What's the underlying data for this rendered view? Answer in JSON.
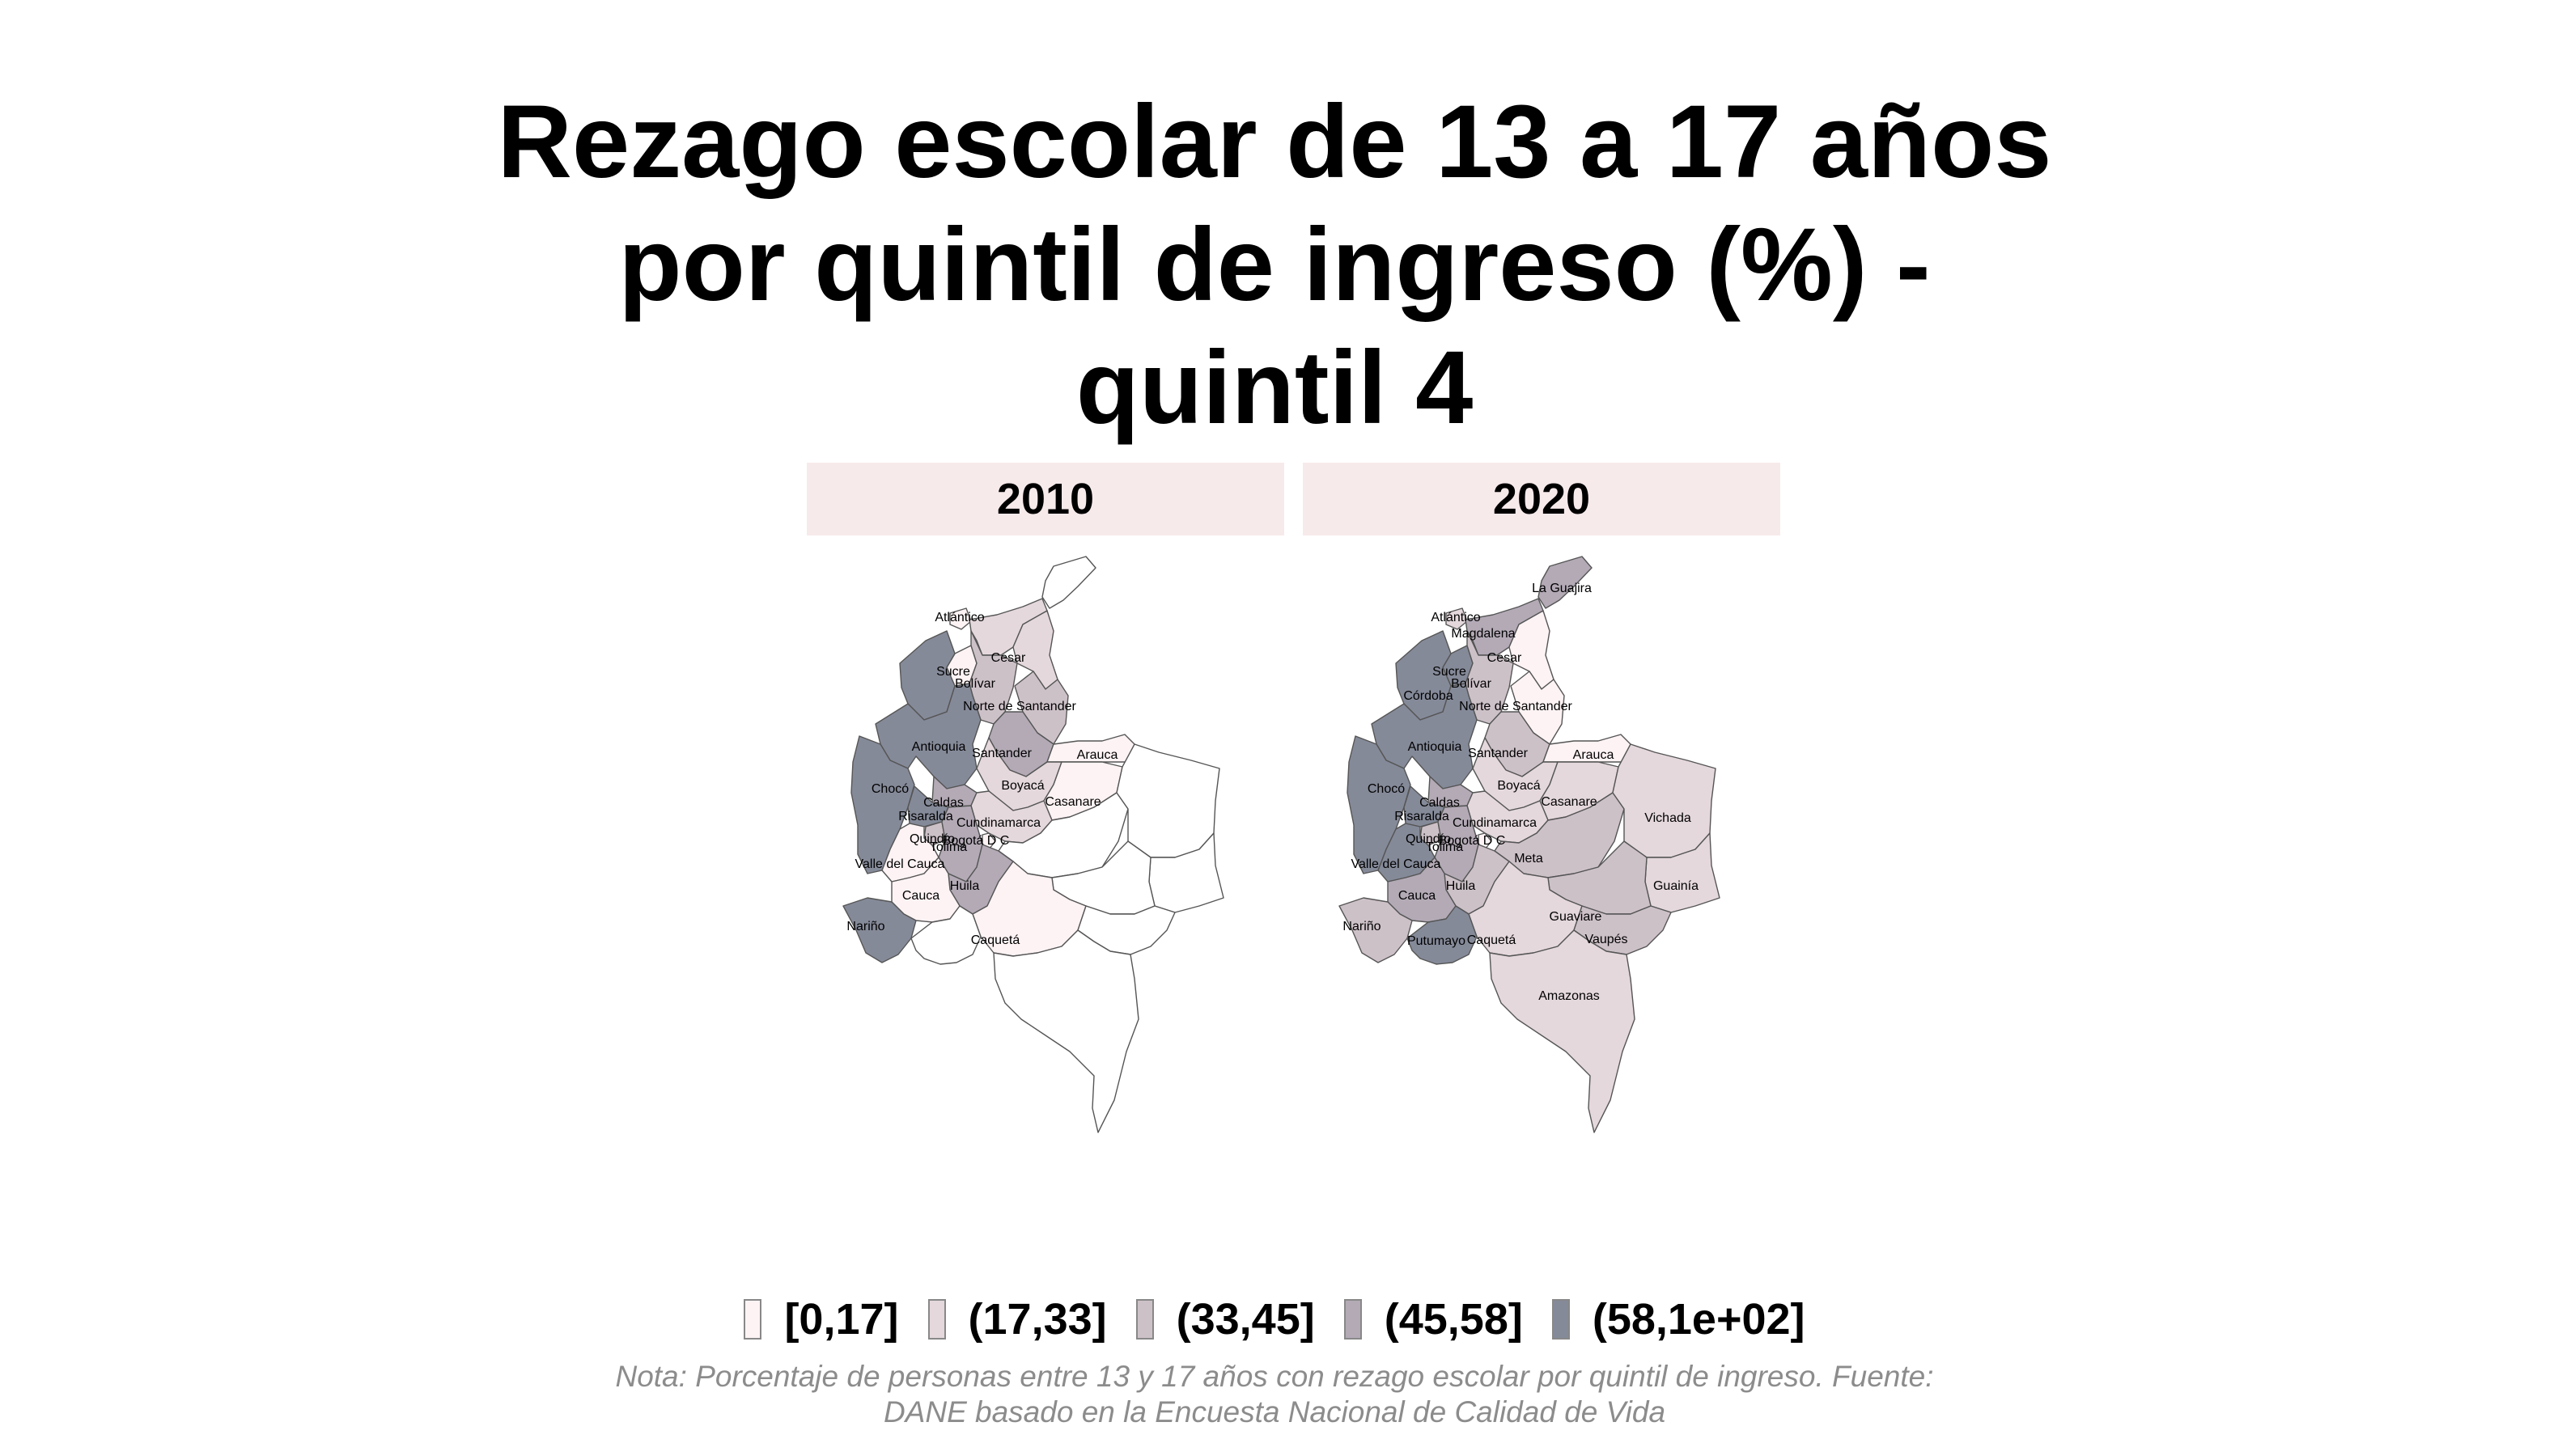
{
  "title": {
    "line1": "Rezago escolar de 13 a 17 años",
    "line2": "por quintil de ingreso (%) -",
    "line3": "quintil 4"
  },
  "panels": [
    {
      "year": "2010"
    },
    {
      "year": "2020"
    }
  ],
  "legend": {
    "bins": [
      {
        "label": "[0,17]",
        "color": "#fdf3f4"
      },
      {
        "label": "(17,33]",
        "color": "#e4d8dc"
      },
      {
        "label": "(33,45]",
        "color": "#cdc1c8"
      },
      {
        "label": "(45,58]",
        "color": "#b3aab6"
      },
      {
        "label": "(58,1e+02]",
        "color": "#858a99"
      }
    ]
  },
  "note": {
    "line1": "Nota: Porcentaje de personas entre 13 y 17 años con rezago escolar por quintil de ingreso. Fuente:",
    "line2": "DANE basado en la Encuesta Nacional de Calidad de Vida"
  },
  "colors": {
    "strip": "#f7eaeb",
    "missing": "#ffffff",
    "border": "#555555",
    "note": "#8c8c8c"
  },
  "map_data": {
    "2010": {
      "La Guajira": null,
      "Atlántico": "[0,17]",
      "Magdalena": "(17,33]",
      "Cesar": "(17,33]",
      "Sucre": "[0,17]",
      "Bolívar": "(33,45]",
      "Córdoba": "(58,1e+02]",
      "Norte de Santander": "(33,45]",
      "Antioquia": "(58,1e+02]",
      "Santander": "(45,58]",
      "Arauca": "[0,17]",
      "Chocó": "(58,1e+02]",
      "Boyacá": "(17,33]",
      "Casanare": "[0,17]",
      "Caldas": "(45,58]",
      "Risaralda": "(58,1e+02]",
      "Cundinamarca": "(17,33]",
      "Quindío": "(33,45]",
      "Bogotá D C": "[0,17]",
      "Tolima": "(45,58]",
      "Valle del Cauca": "[0,17]",
      "Huila": "(45,58]",
      "Cauca": "[0,17]",
      "Nariño": "(58,1e+02]",
      "Caquetá": "[0,17]",
      "Meta": null,
      "Vichada": null,
      "Guainía": null,
      "Guaviare": null,
      "Vaupés": null,
      "Putumayo": null,
      "Amazonas": null
    },
    "2020": {
      "La Guajira": "(45,58]",
      "Atlántico": "(17,33]",
      "Magdalena": "(45,58]",
      "Cesar": "[0,17]",
      "Sucre": "(58,1e+02]",
      "Bolívar": "(33,45]",
      "Córdoba": "(58,1e+02]",
      "Norte de Santander": "[0,17]",
      "Antioquia": "(58,1e+02]",
      "Santander": "(33,45]",
      "Arauca": "[0,17]",
      "Chocó": "(58,1e+02]",
      "Boyacá": "(17,33]",
      "Casanare": "(17,33]",
      "Caldas": "(45,58]",
      "Risaralda": "(58,1e+02]",
      "Cundinamarca": "(17,33]",
      "Quindío": "(33,45]",
      "Bogotá D C": "[0,17]",
      "Tolima": "(45,58]",
      "Valle del Cauca": "(58,1e+02]",
      "Huila": "(33,45]",
      "Cauca": "(45,58]",
      "Nariño": "(33,45]",
      "Caquetá": "(17,33]",
      "Meta": "(33,45]",
      "Vichada": "(17,33]",
      "Guainía": "(17,33]",
      "Guaviare": "(33,45]",
      "Vaupés": "(33,45]",
      "Putumayo": "(58,1e+02]",
      "Amazonas": "(17,33]"
    }
  },
  "map_labels": {
    "2010": [
      "Atlántico",
      "Cesar",
      "Sucre",
      "Bolívar",
      "Norte de Santander",
      "Antioquia",
      "Santander",
      "Arauca",
      "Chocó",
      "Boyacá",
      "Casanare",
      "Caldas",
      "Risaralda",
      "Cundinamarca",
      "Quindío",
      "Bogotá D C",
      "Tolima",
      "Valle del Cauca",
      "Huila",
      "Cauca",
      "Nariño",
      "Caquetá"
    ],
    "2020": [
      "La Guajira",
      "Atlántico",
      "Magdalena",
      "Cesar",
      "Sucre",
      "Bolívar",
      "Córdoba",
      "Norte de Santander",
      "Antioquia",
      "Santander",
      "Arauca",
      "Chocó",
      "Boyacá",
      "Casanare",
      "Caldas",
      "Risaralda",
      "Cundinamarca",
      "Vichada",
      "Quindío",
      "Bogotá D C",
      "Tolima",
      "Valle del Cauca",
      "Meta",
      "Huila",
      "Guainía",
      "Cauca",
      "Guaviare",
      "Nariño",
      "Caquetá",
      "Vaupés",
      "Putumayo",
      "Amazonas"
    ]
  }
}
